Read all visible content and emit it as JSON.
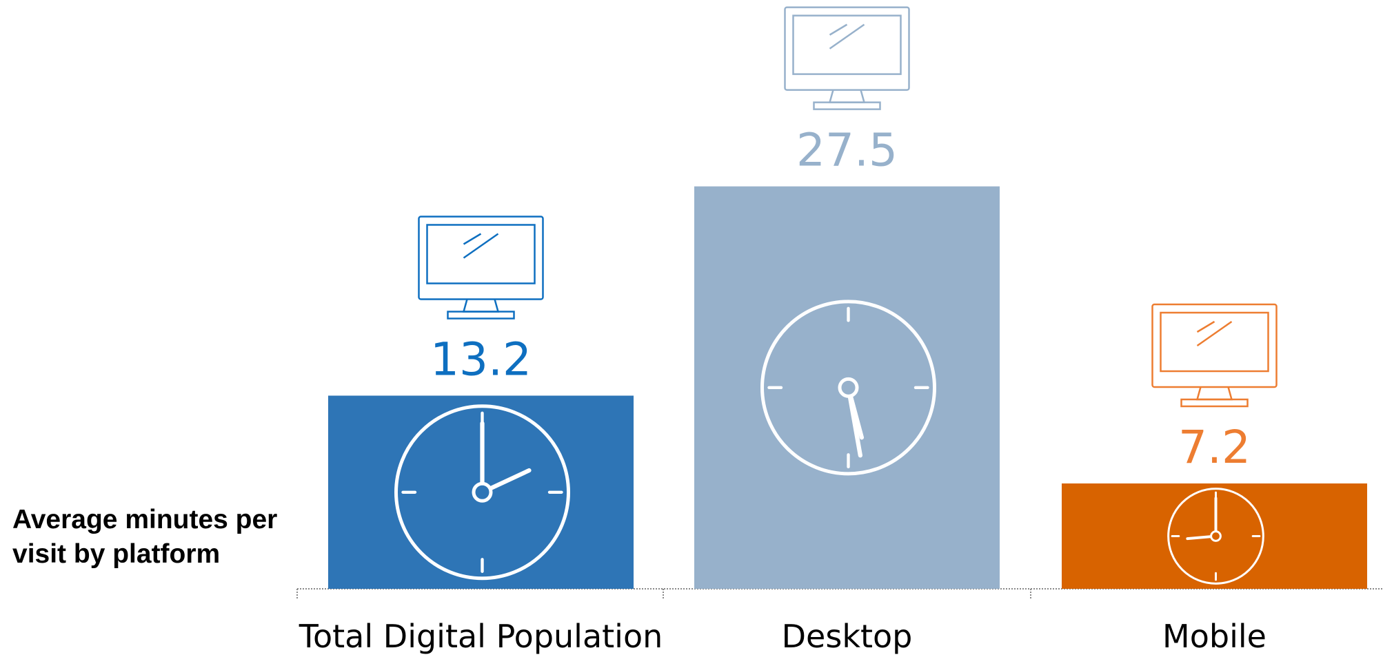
{
  "chart_data": {
    "type": "bar",
    "ylabel": "Average minutes per visit by platform",
    "categories": [
      "Total Digital Population",
      "Desktop",
      "Mobile"
    ],
    "values": [
      13.2,
      27.5,
      7.2
    ],
    "colors": [
      "#2e75b6",
      "#97b1cb",
      "#d86300"
    ],
    "label_colors": [
      "#0e6fc0",
      "#97b1cb",
      "#ed7d31"
    ]
  }
}
